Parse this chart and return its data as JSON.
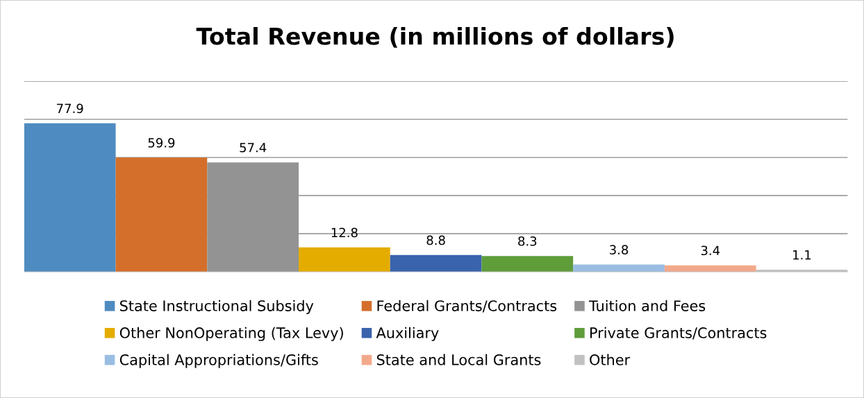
{
  "chart_data": {
    "type": "bar",
    "title": "Total Revenue (in millions of dollars)",
    "categories": [
      null
    ],
    "series": [
      {
        "name": "State Instructional Subsidy",
        "color": "#4e8bc0",
        "values": [
          77.9
        ]
      },
      {
        "name": "Federal Grants/Contracts",
        "color": "#d46f2b",
        "values": [
          59.9
        ]
      },
      {
        "name": "Tuition and Fees",
        "color": "#939393",
        "values": [
          57.4
        ]
      },
      {
        "name": "Other NonOperating (Tax Levy)",
        "color": "#e5ac00",
        "values": [
          12.8
        ]
      },
      {
        "name": "Auxiliary",
        "color": "#3a63ad",
        "values": [
          8.8
        ]
      },
      {
        "name": "Private Grants/Contracts",
        "color": "#5f9c3a",
        "values": [
          8.3
        ]
      },
      {
        "name": "Capital Appropriations/Gifts",
        "color": "#9abde2",
        "values": [
          3.8
        ]
      },
      {
        "name": "State and Local Grants",
        "color": "#f2a98a",
        "values": [
          3.4
        ]
      },
      {
        "name": "Other",
        "color": "#c1c1c1",
        "values": [
          1.1
        ]
      }
    ],
    "ylim": [
      0,
      100
    ],
    "yticks": [
      {
        "value": 0,
        "label": null
      },
      {
        "value": 20,
        "label": null
      },
      {
        "value": 40,
        "label": null
      },
      {
        "value": 60,
        "label": null
      },
      {
        "value": 80,
        "label": null
      },
      {
        "value": 100,
        "label": null
      }
    ],
    "grid": "y",
    "legend": "bottom",
    "data_labels": true
  }
}
